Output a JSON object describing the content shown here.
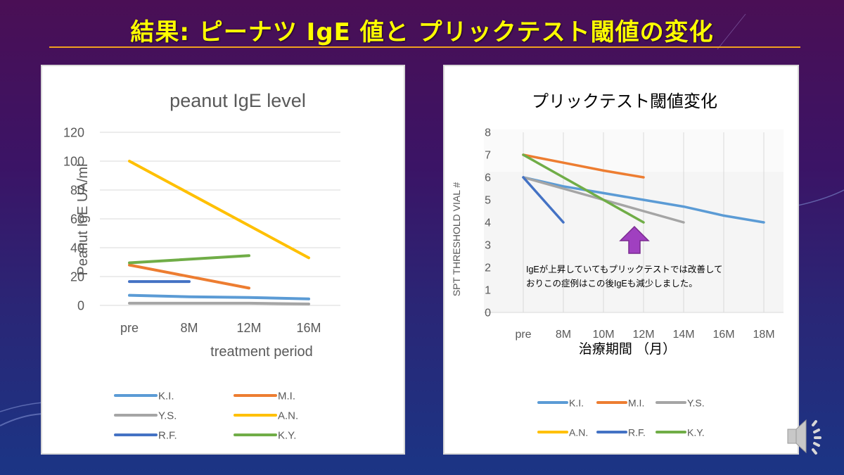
{
  "slide": {
    "title": "結果: ピーナツ IgE 値と プリックテスト閾値の変化",
    "colors": {
      "title": "#ffff00",
      "rule": "#f0a020",
      "arrow": "#a040c0"
    },
    "audio_icon": "speaker-icon"
  },
  "annotation": {
    "line1": "IgEが上昇していてもプリックテストでは改善して",
    "line2": "おりこの症例はこの後IgEも減少しました。",
    "arrow_icon": "up-arrow-icon"
  },
  "chart_data": [
    {
      "type": "line",
      "title": "peanut IgE level",
      "xlabel": "treatment period",
      "ylabel": "Peanut IgE  UA/ml",
      "categories": [
        "pre",
        "8M",
        "12M",
        "16M"
      ],
      "yticks": [
        "0",
        "20",
        "40",
        "60",
        "80",
        "100",
        "120"
      ],
      "ylim": [
        0,
        120
      ],
      "grid": "horizontal",
      "legend_position": "bottom",
      "series": [
        {
          "name": "K.I.",
          "color": "#5b9bd5",
          "values": [
            7,
            6,
            5.5,
            4.5
          ]
        },
        {
          "name": "M.I.",
          "color": "#ed7d31",
          "values": [
            28,
            null,
            12,
            null
          ]
        },
        {
          "name": "Y.S.",
          "color": "#a5a5a5",
          "values": [
            1.5,
            1.5,
            1.5,
            1
          ]
        },
        {
          "name": "A.N.",
          "color": "#ffc000",
          "values": [
            100,
            null,
            null,
            33
          ]
        },
        {
          "name": "R.F.",
          "color": "#4472c4",
          "values": [
            16.5,
            16.5,
            null,
            null
          ]
        },
        {
          "name": "K.Y.",
          "color": "#70ad47",
          "values": [
            29.5,
            null,
            34.5,
            null
          ]
        }
      ]
    },
    {
      "type": "line",
      "title": "プリックテスト閾値変化",
      "xlabel": "治療期間 （月）",
      "ylabel": "SPT THRESHOLD VIAL #",
      "categories": [
        "pre",
        "8M",
        "10M",
        "12M",
        "14M",
        "16M",
        "18M"
      ],
      "yticks": [
        "0",
        "1",
        "2",
        "3",
        "4",
        "5",
        "6",
        "7",
        "8"
      ],
      "ylim": [
        0,
        8
      ],
      "grid": "vertical",
      "legend_position": "bottom",
      "series": [
        {
          "name": "K.I.",
          "color": "#5b9bd5",
          "values": [
            6,
            5.6,
            5.3,
            5.0,
            4.7,
            4.3,
            4.0
          ]
        },
        {
          "name": "M.I.",
          "color": "#ed7d31",
          "values": [
            7,
            6.65,
            6.3,
            6,
            null,
            null,
            null
          ]
        },
        {
          "name": "Y.S.",
          "color": "#a5a5a5",
          "values": [
            6,
            5.5,
            5,
            4.5,
            4,
            null,
            null
          ]
        },
        {
          "name": "A.N.",
          "color": "#ffc000",
          "values": [
            null,
            null,
            null,
            null,
            null,
            null,
            null
          ]
        },
        {
          "name": "R.F.",
          "color": "#4472c4",
          "values": [
            6,
            4,
            null,
            null,
            null,
            null,
            null
          ]
        },
        {
          "name": "K.Y.",
          "color": "#70ad47",
          "values": [
            7,
            6,
            5,
            4,
            null,
            null,
            null
          ]
        }
      ]
    }
  ]
}
